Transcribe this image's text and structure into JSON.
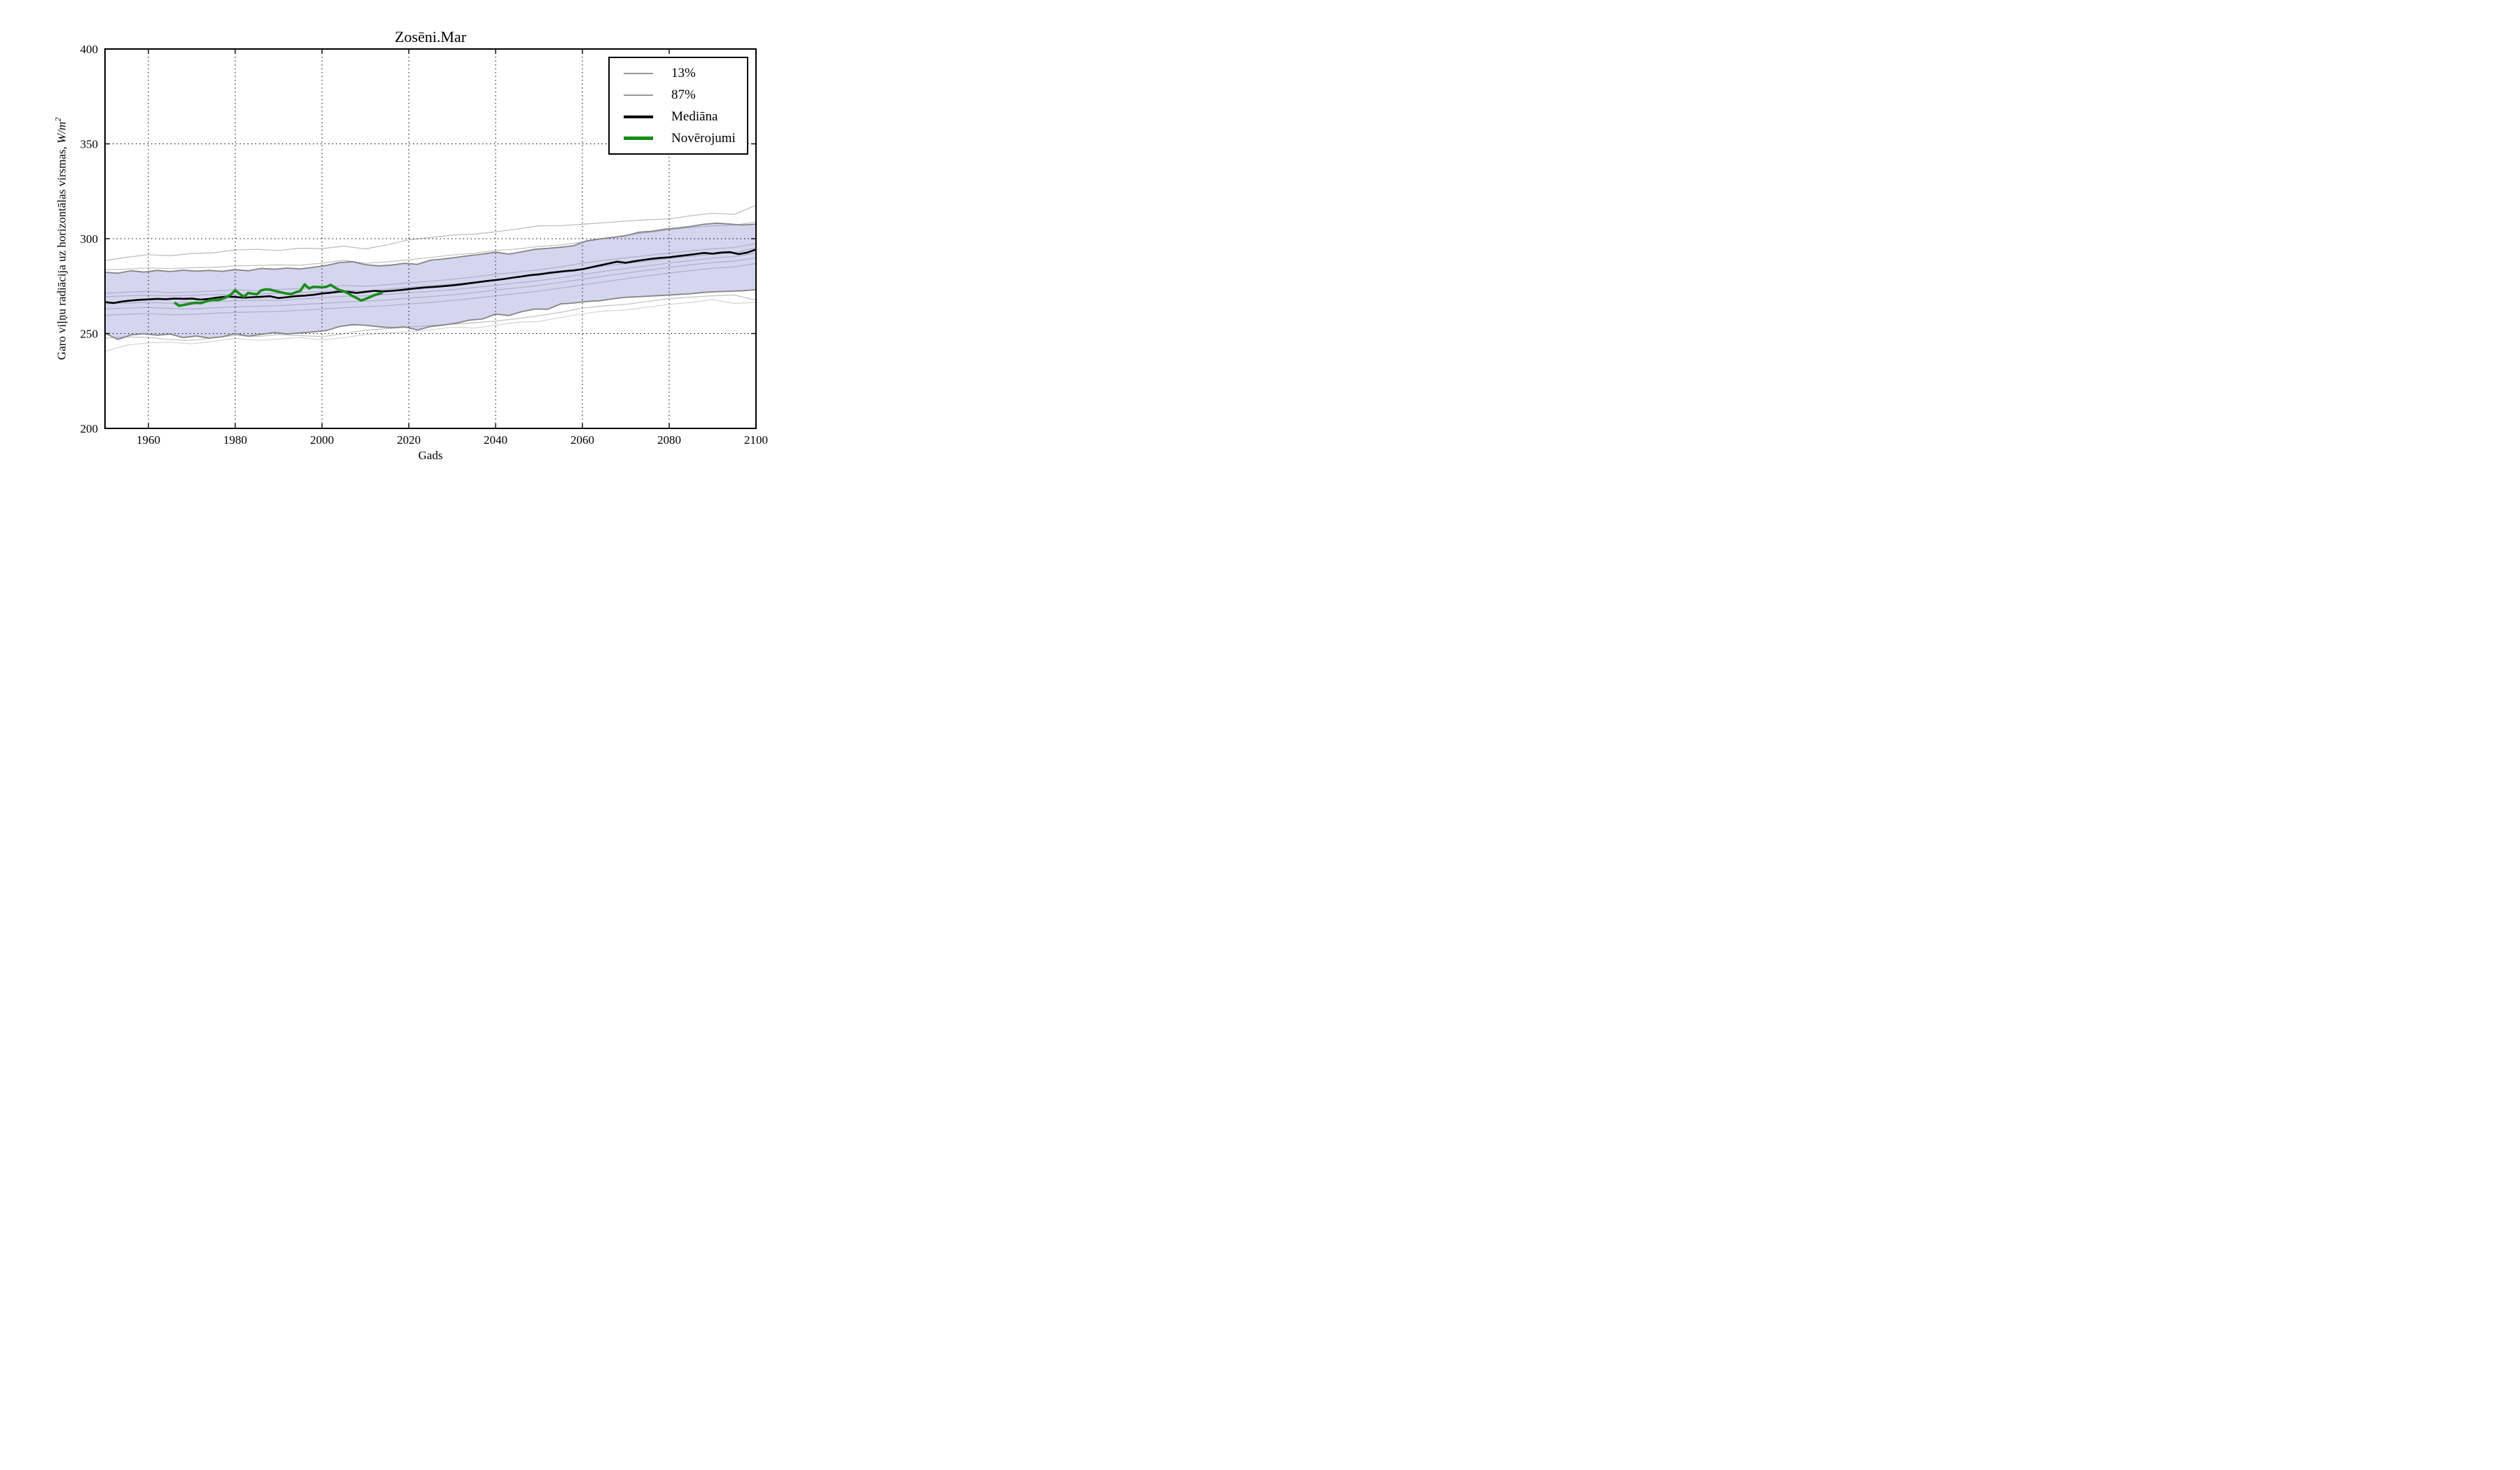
{
  "figure": {
    "title": "Zosēni.Mar",
    "xlabel": "Gads",
    "ylabel_text": "Garo viļņu radiācija uz horizontālas virsmas, ",
    "ylabel_unit": "W/m",
    "ylabel_exponent": "2"
  },
  "legend": {
    "position": "upper right",
    "items": [
      {
        "label": "13%",
        "color": "#999999",
        "thickness": 2
      },
      {
        "label": "87%",
        "color": "#999999",
        "thickness": 2
      },
      {
        "label": "Mediāna",
        "color": "#000000",
        "thickness": 4
      },
      {
        "label": "Novērojumi",
        "color": "#1a8c1a",
        "thickness": 5
      }
    ]
  },
  "chart_data": {
    "type": "line",
    "title": "Zosēni.Mar",
    "xlabel": "Gads",
    "ylabel": "Garo viļņu radiācija uz horizontālas virsmas, W/m²",
    "xlim": [
      1950,
      2100
    ],
    "ylim": [
      200,
      400
    ],
    "xticks": [
      1960,
      1980,
      2000,
      2020,
      2040,
      2060,
      2080,
      2100
    ],
    "yticks": [
      200,
      250,
      300,
      350,
      400
    ],
    "grid": true,
    "grid_style": "dotted",
    "band": {
      "name": "13-87% starpkvantiļu josla",
      "fill": "rgba(150,150,215,0.40)",
      "upper_series": "87%",
      "lower_series": "13%"
    },
    "series": [
      {
        "name": "ensemble-run-low-extreme",
        "role": "ensemble",
        "layer": "under",
        "color": "#d4d4d4",
        "width": 1.2,
        "x0": 1950,
        "dx": 5,
        "y": [
          240.6,
          243.9,
          245.1,
          245.4,
          244.6,
          245.9,
          247.4,
          246.4,
          247.1,
          247.9,
          246.6,
          247.9,
          249.4,
          250.4,
          250.9,
          251.9,
          253.4,
          252.9,
          254.4,
          255.9,
          256.4,
          258.4,
          260.4,
          261.9,
          262.4,
          263.9,
          265.4,
          266.4,
          267.9,
          265.9,
          266.4
        ]
      },
      {
        "name": "ensemble-run-low",
        "role": "ensemble",
        "layer": "under",
        "color": "#c0c0c0",
        "width": 1.2,
        "x0": 1950,
        "dx": 5,
        "y": [
          247.6,
          248.2,
          248.0,
          246.8,
          246.4,
          247.7,
          249.0,
          248.4,
          249.5,
          248.9,
          248.4,
          249.9,
          251.8,
          252.6,
          253.4,
          254.2,
          254.9,
          255.7,
          256.6,
          257.9,
          259.4,
          261.2,
          263.4,
          264.6,
          265.4,
          266.9,
          268.4,
          269.2,
          269.9,
          270.3,
          267.6
        ]
      },
      {
        "name": "ensemble-run-mid-minus3",
        "role": "ensemble",
        "layer": "under",
        "color": "#c0c0c0",
        "width": 1.2,
        "x0": 1950,
        "dx": 5,
        "y": [
          259.6,
          260.2,
          260.6,
          259.9,
          260.1,
          260.7,
          261.1,
          261.4,
          261.7,
          262.3,
          262.9,
          263.6,
          264.1,
          264.7,
          265.6,
          266.4,
          267.4,
          268.6,
          269.9,
          271.1,
          272.4,
          274.0,
          275.6,
          277.3,
          278.9,
          280.4,
          281.9,
          283.2,
          284.4,
          285.2,
          286.9
        ]
      },
      {
        "name": "ensemble-run-mid-minus2",
        "role": "ensemble",
        "layer": "under",
        "color": "#c0c0c0",
        "width": 1.2,
        "x0": 1950,
        "dx": 5,
        "y": [
          263.1,
          263.4,
          263.8,
          263.2,
          262.9,
          263.6,
          264.1,
          264.4,
          264.7,
          265.3,
          265.9,
          266.6,
          267.1,
          267.7,
          268.6,
          269.5,
          270.4,
          271.6,
          272.9,
          274.1,
          275.4,
          277.0,
          278.6,
          280.3,
          281.9,
          283.4,
          284.9,
          286.2,
          287.4,
          288.2,
          289.9
        ]
      },
      {
        "name": "ensemble-run-mid-minus1",
        "role": "ensemble",
        "layer": "under",
        "color": "#c0c0c0",
        "width": 1.2,
        "x0": 1950,
        "dx": 5,
        "y": [
          265.7,
          266.1,
          266.4,
          266.0,
          266.6,
          266.9,
          267.2,
          267.6,
          267.4,
          268.2,
          268.9,
          269.6,
          269.9,
          270.6,
          271.4,
          272.2,
          273.1,
          274.2,
          275.4,
          276.7,
          277.9,
          279.4,
          281.1,
          282.8,
          284.3,
          285.7,
          287.2,
          288.4,
          289.8,
          290.6,
          292.4
        ]
      },
      {
        "name": "ensemble-run-mid-plus1",
        "role": "ensemble",
        "layer": "under",
        "color": "#c0c0c0",
        "width": 1.2,
        "x0": 1950,
        "dx": 5,
        "y": [
          269.4,
          269.9,
          270.2,
          269.8,
          270.1,
          270.6,
          270.4,
          270.9,
          271.2,
          271.6,
          272.1,
          272.8,
          272.4,
          273.4,
          274.3,
          275.2,
          276.1,
          277.2,
          278.4,
          279.6,
          280.7,
          282.3,
          284.2,
          285.7,
          286.9,
          288.2,
          289.6,
          290.7,
          291.9,
          292.6,
          295.2
        ]
      },
      {
        "name": "ensemble-run-mid-plus2",
        "role": "ensemble",
        "layer": "under",
        "color": "#c0c0c0",
        "width": 1.2,
        "x0": 1950,
        "dx": 5,
        "y": [
          271.2,
          271.8,
          272.3,
          271.6,
          271.9,
          272.4,
          273.1,
          272.6,
          273.2,
          273.8,
          274.6,
          275.3,
          274.9,
          275.8,
          276.7,
          277.6,
          278.6,
          279.8,
          281.2,
          282.4,
          283.6,
          285.2,
          287.1,
          288.6,
          289.9,
          291.2,
          292.4,
          293.6,
          294.7,
          295.3,
          297.4
        ]
      },
      {
        "name": "ensemble-run-high",
        "role": "ensemble",
        "layer": "under",
        "color": "#c0c0c0",
        "width": 1.2,
        "x0": 1950,
        "dx": 5,
        "y": [
          283.6,
          284.0,
          284.6,
          284.2,
          284.7,
          284.9,
          285.6,
          285.9,
          286.2,
          286.0,
          287.1,
          288.6,
          287.0,
          287.8,
          288.9,
          290.1,
          291.4,
          292.3,
          293.8,
          294.6,
          295.9,
          296.7,
          298.2,
          300.1,
          301.8,
          303.2,
          304.8,
          305.9,
          306.8,
          307.2,
          308.8
        ]
      },
      {
        "name": "ensemble-run-high-extreme",
        "role": "ensemble",
        "layer": "under",
        "color": "#bababa",
        "width": 1.2,
        "x0": 1950,
        "dx": 5,
        "y": [
          288.5,
          290.2,
          291.6,
          291.0,
          292.2,
          292.6,
          294.1,
          294.4,
          293.8,
          295.0,
          294.8,
          296.1,
          294.6,
          296.8,
          299.4,
          300.6,
          301.9,
          302.4,
          303.6,
          305.1,
          306.8,
          306.9,
          307.6,
          308.4,
          309.3,
          310.0,
          310.4,
          312.1,
          313.4,
          312.8,
          317.6
        ]
      },
      {
        "name": "percentile-13",
        "role": "percentile",
        "layer": "over",
        "label": "13%",
        "color": "#858585",
        "width": 1.8,
        "x0": 1950,
        "dx": 3,
        "y": [
          250.2,
          246.9,
          249.3,
          249.9,
          249.1,
          249.7,
          247.9,
          248.7,
          247.6,
          248.3,
          250.0,
          248.6,
          249.6,
          250.5,
          249.8,
          250.3,
          250.9,
          251.6,
          253.7,
          254.7,
          254.4,
          253.6,
          253.1,
          253.5,
          251.9,
          253.7,
          254.5,
          255.5,
          257.1,
          257.7,
          260.3,
          259.5,
          261.5,
          262.9,
          262.8,
          265.6,
          266.1,
          266.9,
          267.3,
          268.3,
          269.1,
          269.4,
          269.8,
          270.2,
          270.6,
          271.0,
          271.7,
          272.1,
          272.3,
          272.6,
          273.1
        ]
      },
      {
        "name": "percentile-87",
        "role": "percentile",
        "layer": "over",
        "label": "87%",
        "color": "#858585",
        "width": 1.8,
        "x0": 1950,
        "dx": 3,
        "y": [
          282.3,
          281.8,
          283.1,
          282.4,
          283.3,
          282.7,
          283.4,
          282.9,
          283.3,
          282.8,
          283.7,
          283.1,
          284.3,
          283.9,
          284.5,
          284.1,
          284.9,
          285.9,
          287.4,
          287.9,
          286.3,
          285.7,
          286.1,
          287.0,
          286.5,
          288.7,
          289.3,
          290.2,
          291.1,
          291.9,
          292.9,
          291.9,
          293.1,
          294.4,
          294.9,
          295.5,
          296.3,
          298.9,
          299.9,
          300.7,
          301.6,
          303.4,
          303.9,
          305.0,
          305.7,
          306.5,
          307.6,
          308.2,
          307.7,
          307.2,
          307.7
        ]
      },
      {
        "name": "median",
        "role": "median",
        "layer": "over",
        "label": "Mediāna",
        "color": "#000000",
        "width": 2.6,
        "x0": 1950,
        "dx": 2,
        "y": [
          266.6,
          266.1,
          266.9,
          267.4,
          267.8,
          268.0,
          268.3,
          268.1,
          268.4,
          268.3,
          268.4,
          267.9,
          268.3,
          269.0,
          269.5,
          269.3,
          268.9,
          269.2,
          269.4,
          269.7,
          268.7,
          269.2,
          269.7,
          270.0,
          270.4,
          271.1,
          271.5,
          272.1,
          272.0,
          271.4,
          272.0,
          272.5,
          272.2,
          272.5,
          272.9,
          273.4,
          273.9,
          274.3,
          274.6,
          275.0,
          275.4,
          275.9,
          276.5,
          277.1,
          277.7,
          278.2,
          278.8,
          279.5,
          280.1,
          280.8,
          281.2,
          281.9,
          282.4,
          282.9,
          283.3,
          283.9,
          284.9,
          285.9,
          286.9,
          287.9,
          287.3,
          288.1,
          288.8,
          289.4,
          289.9,
          290.2,
          290.8,
          291.3,
          291.9,
          292.5,
          292.1,
          292.7,
          292.9,
          291.9,
          292.7,
          294.3
        ]
      },
      {
        "name": "observations",
        "role": "observations",
        "layer": "over",
        "label": "Novērojumi",
        "color": "#1a8c1a",
        "width": 3.6,
        "x0": 1966,
        "dx": 1,
        "y": [
          266.4,
          264.7,
          265.0,
          265.5,
          265.9,
          266.2,
          266.0,
          266.7,
          267.4,
          267.8,
          267.6,
          268.3,
          269.2,
          270.5,
          272.8,
          271.0,
          269.3,
          271.4,
          271.0,
          270.7,
          272.8,
          273.3,
          273.2,
          272.6,
          272.0,
          271.5,
          271.0,
          270.8,
          271.8,
          272.5,
          275.9,
          273.8,
          274.6,
          274.5,
          274.4,
          274.6,
          275.7,
          274.2,
          272.9,
          272.3,
          271.2,
          269.8,
          268.7,
          267.4,
          268.2,
          269.2,
          270.2,
          270.9,
          271.6
        ]
      }
    ]
  }
}
